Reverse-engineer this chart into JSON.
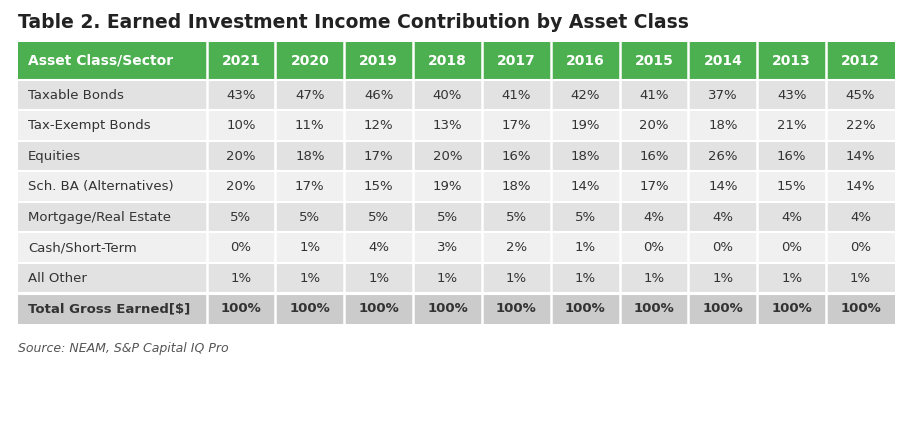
{
  "title": "Table 2. Earned Investment Income Contribution by Asset Class",
  "source": "Source: NEAM, S&P Capital IQ Pro",
  "header_row": [
    "Asset Class/Sector",
    "2021",
    "2020",
    "2019",
    "2018",
    "2017",
    "2016",
    "2015",
    "2014",
    "2013",
    "2012"
  ],
  "rows": [
    [
      "Taxable Bonds",
      "43%",
      "47%",
      "46%",
      "40%",
      "41%",
      "42%",
      "41%",
      "37%",
      "43%",
      "45%"
    ],
    [
      "Tax-Exempt Bonds",
      "10%",
      "11%",
      "12%",
      "13%",
      "17%",
      "19%",
      "20%",
      "18%",
      "21%",
      "22%"
    ],
    [
      "Equities",
      "20%",
      "18%",
      "17%",
      "20%",
      "16%",
      "18%",
      "16%",
      "26%",
      "16%",
      "14%"
    ],
    [
      "Sch. BA (Alternatives)",
      "20%",
      "17%",
      "15%",
      "19%",
      "18%",
      "14%",
      "17%",
      "14%",
      "15%",
      "14%"
    ],
    [
      "Mortgage/Real Estate",
      "5%",
      "5%",
      "5%",
      "5%",
      "5%",
      "5%",
      "4%",
      "4%",
      "4%",
      "4%"
    ],
    [
      "Cash/Short-Term",
      "0%",
      "1%",
      "4%",
      "3%",
      "2%",
      "1%",
      "0%",
      "0%",
      "0%",
      "0%"
    ],
    [
      "All Other",
      "1%",
      "1%",
      "1%",
      "1%",
      "1%",
      "1%",
      "1%",
      "1%",
      "1%",
      "1%"
    ],
    [
      "Total Gross Earned[$]",
      "100%",
      "100%",
      "100%",
      "100%",
      "100%",
      "100%",
      "100%",
      "100%",
      "100%",
      "100%"
    ]
  ],
  "header_bg": "#4caf50",
  "header_text_color": "#ffffff",
  "row_bg_odd": "#e2e2e2",
  "row_bg_even": "#f0f0f0",
  "last_row_bg": "#cbcbcb",
  "sep_color": "#ffffff",
  "title_color": "#222222",
  "source_color": "#555555",
  "text_color": "#333333",
  "fig_w": 9.08,
  "fig_h": 4.28,
  "dpi": 100,
  "title_fontsize": 13.5,
  "header_fontsize": 10,
  "cell_fontsize": 9.5,
  "source_fontsize": 9
}
